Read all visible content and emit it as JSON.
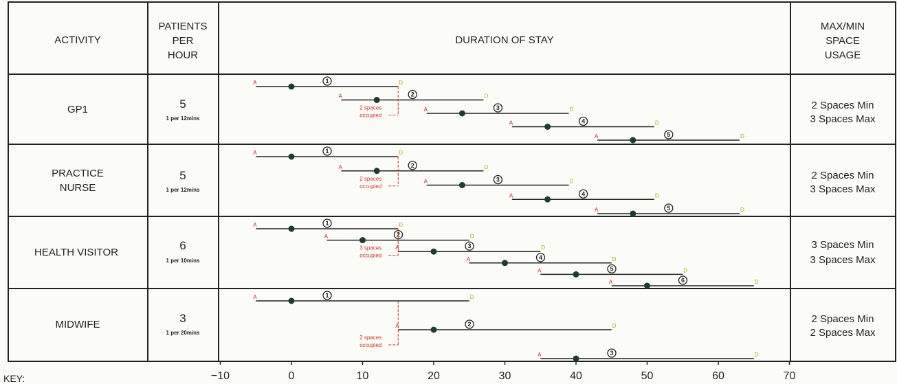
{
  "headers": {
    "activity": "ACTIVITY",
    "patients": [
      "PATIENTS",
      "PER",
      "HOUR"
    ],
    "duration": "DURATION OF STAY",
    "usage": [
      "MAX/MIN",
      "SPACE",
      "USAGE"
    ]
  },
  "rows": [
    {
      "activity": [
        "GP1"
      ],
      "patients": "5",
      "rate": "1 per 12mins",
      "usage": [
        "2 Spaces Min",
        "3 Spaces Max"
      ],
      "occupied": [
        "2 spaces",
        "occupied"
      ],
      "occupied_at": 15,
      "bars": [
        {
          "n": "1",
          "a": -5,
          "mid": 0,
          "d": 15
        },
        {
          "n": "2",
          "a": 7,
          "mid": 12,
          "d": 27
        },
        {
          "n": "3",
          "a": 19,
          "mid": 24,
          "d": 39
        },
        {
          "n": "4",
          "a": 31,
          "mid": 36,
          "d": 51
        },
        {
          "n": "5",
          "a": 43,
          "mid": 48,
          "d": 63
        }
      ]
    },
    {
      "activity": [
        "PRACTICE",
        "NURSE"
      ],
      "patients": "5",
      "rate": "1 per 12mins",
      "usage": [
        "2 Spaces Min",
        "3 Spaces Max"
      ],
      "occupied": [
        "2 spaces",
        "occupied"
      ],
      "occupied_at": 15,
      "bars": [
        {
          "n": "1",
          "a": -5,
          "mid": 0,
          "d": 15
        },
        {
          "n": "2",
          "a": 7,
          "mid": 12,
          "d": 27
        },
        {
          "n": "3",
          "a": 19,
          "mid": 24,
          "d": 39
        },
        {
          "n": "4",
          "a": 31,
          "mid": 36,
          "d": 51
        },
        {
          "n": "5",
          "a": 43,
          "mid": 48,
          "d": 63
        }
      ]
    },
    {
      "activity": [
        "HEALTH VISITOR"
      ],
      "patients": "6",
      "rate": "1 per 10mins",
      "usage": [
        "3 Spaces Min",
        "3 Spaces Max"
      ],
      "occupied": [
        "3 spaces",
        "occupied"
      ],
      "occupied_at": 15,
      "bars": [
        {
          "n": "1",
          "a": -5,
          "mid": 0,
          "d": 15
        },
        {
          "n": "2",
          "a": 5,
          "mid": 10,
          "d": 25
        },
        {
          "n": "3",
          "a": 15,
          "mid": 20,
          "d": 35
        },
        {
          "n": "4",
          "a": 25,
          "mid": 30,
          "d": 45
        },
        {
          "n": "5",
          "a": 35,
          "mid": 40,
          "d": 55
        },
        {
          "n": "6",
          "a": 45,
          "mid": 50,
          "d": 65
        }
      ]
    },
    {
      "activity": [
        "MIDWIFE"
      ],
      "patients": "3",
      "rate": "1 per 20mins",
      "usage": [
        "2 Spaces Min",
        "2 Spaces Max"
      ],
      "occupied": [
        "2 spaces",
        "occupied"
      ],
      "occupied_at": 15,
      "bars": [
        {
          "n": "1",
          "a": -5,
          "mid": 0,
          "d": 25
        },
        {
          "n": "2",
          "a": 15,
          "mid": 20,
          "d": 45
        },
        {
          "n": "3",
          "a": 35,
          "mid": 40,
          "d": 65
        }
      ]
    }
  ],
  "axis": {
    "ticks": [
      "-10",
      "0",
      "10",
      "20",
      "30",
      "40",
      "50",
      "60",
      "70"
    ],
    "min": -10,
    "max": 70
  },
  "markers": {
    "arrive": "A",
    "depart": "D"
  },
  "key_label": "KEY:",
  "colors": {
    "line": "#222222",
    "dot": "#1f3b2f",
    "arrive": "#b52a1c",
    "depart": "#b8a21a",
    "occupied": "#c0392b"
  }
}
